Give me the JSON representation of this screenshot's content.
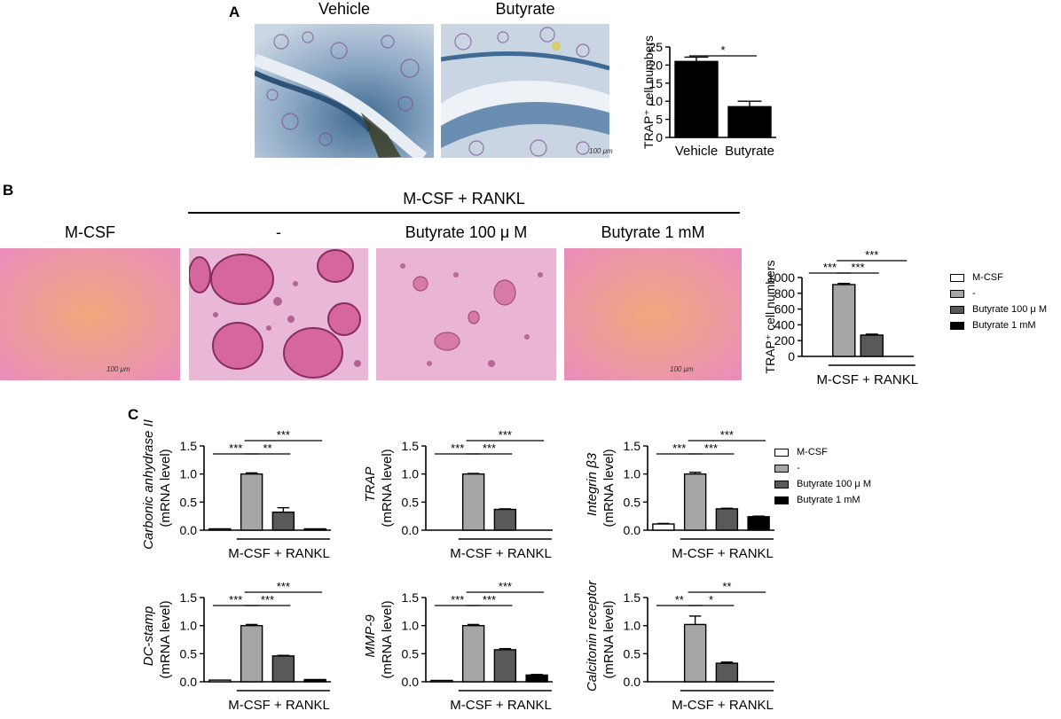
{
  "panelA": {
    "letter": "A",
    "images": [
      {
        "label": "Vehicle",
        "scale": ""
      },
      {
        "label": "Butyrate",
        "scale": "100 μm"
      }
    ]
  },
  "panelB": {
    "letter": "B",
    "group_label": "M-CSF + RANKL",
    "images": [
      {
        "label": "M-CSF",
        "scale": "100 μm"
      },
      {
        "label": "-",
        "scale": ""
      },
      {
        "label": "Butyrate 100 μ M",
        "scale": ""
      },
      {
        "label": "Butyrate 1 mM",
        "scale": "100 μm"
      }
    ]
  },
  "panelC": {
    "letter": "C"
  },
  "legend": [
    "M-CSF",
    "-",
    "Butyrate 100 μ M",
    "Butyrate 1 mM"
  ],
  "colors": {
    "mcsf": "#ffffff",
    "rankl": "#a6a6a6",
    "but100": "#595959",
    "but1": "#000000"
  },
  "chart_data": [
    {
      "id": "A",
      "type": "bar",
      "categories": [
        "Vehicle",
        "Butyrate"
      ],
      "values": [
        21,
        8.5
      ],
      "errors": [
        1.2,
        1.5
      ],
      "ylabel": "TRAP⁺ cell numbers",
      "ylim": [
        0,
        25
      ],
      "yticks": [
        0,
        5,
        10,
        15,
        20,
        25
      ],
      "sig": [
        {
          "from": 0,
          "to": 1,
          "label": "*"
        }
      ]
    },
    {
      "id": "B",
      "type": "bar",
      "categories": [
        "M-CSF",
        "-",
        "Butyrate 100 μ M",
        "Butyrate 1 mM"
      ],
      "values": [
        0,
        910,
        270,
        0
      ],
      "errors": [
        0,
        15,
        12,
        0
      ],
      "ylabel": "TRAP⁺ cell numbers",
      "xlabel": "M-CSF + RANKL",
      "ylim": [
        0,
        1000
      ],
      "yticks": [
        0,
        200,
        400,
        600,
        800,
        1000
      ],
      "sig": [
        {
          "from": 0,
          "to": 1,
          "label": "***"
        },
        {
          "from": 1,
          "to": 2,
          "label": "***"
        },
        {
          "from": 1,
          "to": 3,
          "label": "***"
        }
      ]
    },
    {
      "id": "C1",
      "type": "bar",
      "categories": [
        "M-CSF",
        "-",
        "Butyrate 100 μ M",
        "Butyrate 1 mM"
      ],
      "values": [
        0.01,
        1.0,
        0.32,
        0.01
      ],
      "errors": [
        0,
        0.02,
        0.08,
        0
      ],
      "ylabel_gene": "Carbonic anhydrase II",
      "ylabel_unit": "(mRNA level)",
      "xlabel": "M-CSF + RANKL",
      "ylim": [
        0,
        1.5
      ],
      "yticks": [
        "0.0",
        "0.5",
        "1.0",
        "1.5"
      ],
      "sig": [
        {
          "from": 0,
          "to": 1,
          "label": "***"
        },
        {
          "from": 1,
          "to": 2,
          "label": "**"
        },
        {
          "from": 1,
          "to": 3,
          "label": "***"
        }
      ]
    },
    {
      "id": "C2",
      "type": "bar",
      "categories": [
        "M-CSF",
        "-",
        "Butyrate 100 μ M",
        "Butyrate 1 mM"
      ],
      "values": [
        0.0,
        1.0,
        0.37,
        0.0
      ],
      "errors": [
        0,
        0.01,
        0.01,
        0
      ],
      "ylabel_gene": "TRAP",
      "ylabel_unit": "(mRNA level)",
      "xlabel": "M-CSF + RANKL",
      "ylim": [
        0,
        1.5
      ],
      "yticks": [
        "0.0",
        "0.5",
        "1.0",
        "1.5"
      ],
      "sig": [
        {
          "from": 0,
          "to": 1,
          "label": "***"
        },
        {
          "from": 1,
          "to": 2,
          "label": "***"
        },
        {
          "from": 1,
          "to": 3,
          "label": "***"
        }
      ]
    },
    {
      "id": "C3",
      "type": "bar",
      "categories": [
        "M-CSF",
        "-",
        "Butyrate 100 μ M",
        "Butyrate 1 mM"
      ],
      "values": [
        0.11,
        1.0,
        0.38,
        0.24
      ],
      "errors": [
        0.01,
        0.03,
        0.01,
        0.01
      ],
      "ylabel_gene": "Integrin β3",
      "ylabel_unit": "(mRNA level)",
      "xlabel": "M-CSF + RANKL",
      "ylim": [
        0,
        1.5
      ],
      "yticks": [
        "0.0",
        "0.5",
        "1.0",
        "1.5"
      ],
      "sig": [
        {
          "from": 0,
          "to": 1,
          "label": "***"
        },
        {
          "from": 1,
          "to": 2,
          "label": "***"
        },
        {
          "from": 1,
          "to": 3,
          "label": "***"
        }
      ]
    },
    {
      "id": "C4",
      "type": "bar",
      "categories": [
        "M-CSF",
        "-",
        "Butyrate 100 μ M",
        "Butyrate 1 mM"
      ],
      "values": [
        0.03,
        1.0,
        0.46,
        0.04
      ],
      "errors": [
        0,
        0.02,
        0.01,
        0
      ],
      "ylabel_gene": "DC-stamp",
      "ylabel_unit": "(mRNA level)",
      "xlabel": "M-CSF + RANKL",
      "ylim": [
        0,
        1.5
      ],
      "yticks": [
        "0.0",
        "0.5",
        "1.0",
        "1.5"
      ],
      "sig": [
        {
          "from": 0,
          "to": 1,
          "label": "***"
        },
        {
          "from": 1,
          "to": 2,
          "label": "***"
        },
        {
          "from": 1,
          "to": 3,
          "label": "***"
        }
      ]
    },
    {
      "id": "C5",
      "type": "bar",
      "categories": [
        "M-CSF",
        "-",
        "Butyrate 100 μ M",
        "Butyrate 1 mM"
      ],
      "values": [
        0.01,
        1.0,
        0.57,
        0.12
      ],
      "errors": [
        0,
        0.02,
        0.02,
        0.01
      ],
      "ylabel_gene": "MMP-9",
      "ylabel_unit": "(mRNA level)",
      "xlabel": "M-CSF + RANKL",
      "ylim": [
        0,
        1.5
      ],
      "yticks": [
        "0.0",
        "0.5",
        "1.0",
        "1.5"
      ],
      "sig": [
        {
          "from": 0,
          "to": 1,
          "label": "***"
        },
        {
          "from": 1,
          "to": 2,
          "label": "***"
        },
        {
          "from": 1,
          "to": 3,
          "label": "***"
        }
      ]
    },
    {
      "id": "C6",
      "type": "bar",
      "categories": [
        "M-CSF",
        "-",
        "Butyrate 100 μ M",
        "Butyrate 1 mM"
      ],
      "values": [
        0.0,
        1.02,
        0.33,
        0.0
      ],
      "errors": [
        0,
        0.15,
        0.02,
        0
      ],
      "ylabel_gene": "Calcitonin receptor",
      "ylabel_unit": "(mRNA level)",
      "xlabel": "M-CSF + RANKL",
      "ylim": [
        0,
        1.5
      ],
      "yticks": [
        "0.0",
        "0.5",
        "1.0",
        "1.5"
      ],
      "sig": [
        {
          "from": 0,
          "to": 1,
          "label": "**"
        },
        {
          "from": 1,
          "to": 2,
          "label": "*"
        },
        {
          "from": 1,
          "to": 3,
          "label": "**"
        }
      ]
    }
  ]
}
